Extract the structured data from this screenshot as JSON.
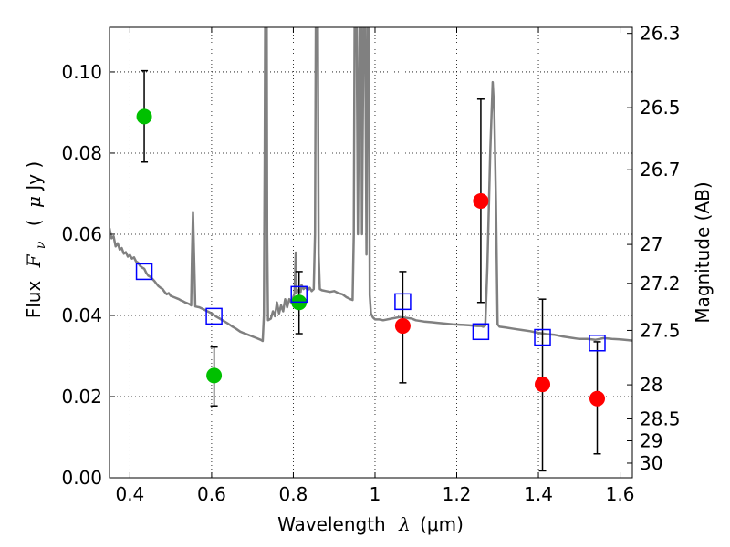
{
  "chart_data": {
    "type": "scatter",
    "xlabel_prefix": "Wavelength",
    "xlabel_symbol": "λ",
    "xlabel_units": "(μm)",
    "ylabel_prefix": "Flux",
    "ylabel_symbol": "F",
    "ylabel_subscript": "ν",
    "ylabel_units_open": "(",
    "ylabel_units_symbol": "μ",
    "ylabel_units_rest": "Jy )",
    "ylabel_right": "Magnitude (AB)",
    "xlim": [
      0.35,
      1.63
    ],
    "ylim": [
      0.0,
      0.111
    ],
    "grid": true,
    "x_ticks": [
      {
        "value": 0.4,
        "label": "0.4"
      },
      {
        "value": 0.6,
        "label": "0.6"
      },
      {
        "value": 0.8,
        "label": "0.8"
      },
      {
        "value": 1.0,
        "label": "1"
      },
      {
        "value": 1.2,
        "label": "1.2"
      },
      {
        "value": 1.4,
        "label": "1.4"
      },
      {
        "value": 1.6,
        "label": "1.6"
      }
    ],
    "y_ticks": [
      {
        "value": 0.0,
        "label": "0.00"
      },
      {
        "value": 0.02,
        "label": "0.02"
      },
      {
        "value": 0.04,
        "label": "0.04"
      },
      {
        "value": 0.06,
        "label": "0.06"
      },
      {
        "value": 0.08,
        "label": "0.08"
      },
      {
        "value": 0.1,
        "label": "0.10"
      }
    ],
    "right_ticks": [
      {
        "label": "26.3",
        "flux": 0.1095
      },
      {
        "label": "26.5",
        "flux": 0.0912
      },
      {
        "label": "26.7",
        "flux": 0.0759
      },
      {
        "label": "27",
        "flux": 0.0575
      },
      {
        "label": "27.2",
        "flux": 0.0479
      },
      {
        "label": "27.5",
        "flux": 0.0363
      },
      {
        "label": "28",
        "flux": 0.0229
      },
      {
        "label": "28.5",
        "flux": 0.0145
      },
      {
        "label": "29",
        "flux": 0.0091
      },
      {
        "label": "30",
        "flux": 0.0036
      }
    ],
    "series": [
      {
        "marker": "circle",
        "color": "#00c000",
        "points": [
          {
            "x": 0.435,
            "y": 0.089,
            "lo": 0.0778,
            "hi": 0.1003
          },
          {
            "x": 0.606,
            "y": 0.0252,
            "lo": 0.0177,
            "hi": 0.0322
          },
          {
            "x": 0.814,
            "y": 0.0432,
            "lo": 0.0355,
            "hi": 0.0508
          }
        ]
      },
      {
        "marker": "circle",
        "color": "#ff0000",
        "points": [
          {
            "x": 1.068,
            "y": 0.0374,
            "lo": 0.0234,
            "hi": 0.0508
          },
          {
            "x": 1.259,
            "y": 0.0682,
            "lo": 0.0432,
            "hi": 0.0933
          },
          {
            "x": 1.41,
            "y": 0.023,
            "lo": 0.0017,
            "hi": 0.044
          },
          {
            "x": 1.544,
            "y": 0.0195,
            "lo": 0.0059,
            "hi": 0.0335
          }
        ]
      },
      {
        "marker": "open-square",
        "color": "#0000ff",
        "points": [
          {
            "x": 0.435,
            "y": 0.0508
          },
          {
            "x": 0.606,
            "y": 0.0398
          },
          {
            "x": 0.814,
            "y": 0.0452
          },
          {
            "x": 1.068,
            "y": 0.0434
          },
          {
            "x": 1.259,
            "y": 0.036
          },
          {
            "x": 1.41,
            "y": 0.0346
          },
          {
            "x": 1.544,
            "y": 0.0332
          }
        ]
      }
    ],
    "sed_model": {
      "color": "#808080",
      "points": [
        [
          0.35,
          0.0615
        ],
        [
          0.355,
          0.059
        ],
        [
          0.36,
          0.0595
        ],
        [
          0.365,
          0.057
        ],
        [
          0.37,
          0.0578
        ],
        [
          0.375,
          0.0562
        ],
        [
          0.38,
          0.0566
        ],
        [
          0.385,
          0.0552
        ],
        [
          0.39,
          0.0556
        ],
        [
          0.395,
          0.0545
        ],
        [
          0.4,
          0.0549
        ],
        [
          0.405,
          0.054
        ],
        [
          0.41,
          0.0543
        ],
        [
          0.415,
          0.0533
        ],
        [
          0.42,
          0.053
        ],
        [
          0.425,
          0.0522
        ],
        [
          0.43,
          0.0518
        ],
        [
          0.435,
          0.0515
        ],
        [
          0.44,
          0.0505
        ],
        [
          0.445,
          0.0498
        ],
        [
          0.45,
          0.0495
        ],
        [
          0.455,
          0.049
        ],
        [
          0.46,
          0.0485
        ],
        [
          0.465,
          0.0478
        ],
        [
          0.47,
          0.0472
        ],
        [
          0.475,
          0.0468
        ],
        [
          0.48,
          0.0465
        ],
        [
          0.485,
          0.0458
        ],
        [
          0.49,
          0.0452
        ],
        [
          0.495,
          0.0455
        ],
        [
          0.5,
          0.0448
        ],
        [
          0.505,
          0.0446
        ],
        [
          0.51,
          0.0444
        ],
        [
          0.515,
          0.0442
        ],
        [
          0.52,
          0.044
        ],
        [
          0.525,
          0.0437
        ],
        [
          0.53,
          0.0435
        ],
        [
          0.535,
          0.0432
        ],
        [
          0.54,
          0.043
        ],
        [
          0.545,
          0.0428
        ],
        [
          0.55,
          0.0425
        ],
        [
          0.552,
          0.0545
        ],
        [
          0.5545,
          0.0655
        ],
        [
          0.557,
          0.0545
        ],
        [
          0.56,
          0.0422
        ],
        [
          0.57,
          0.042
        ],
        [
          0.58,
          0.0415
        ],
        [
          0.59,
          0.041
        ],
        [
          0.6,
          0.0405
        ],
        [
          0.61,
          0.0398
        ],
        [
          0.62,
          0.0392
        ],
        [
          0.63,
          0.0386
        ],
        [
          0.64,
          0.038
        ],
        [
          0.65,
          0.0373
        ],
        [
          0.66,
          0.0367
        ],
        [
          0.67,
          0.036
        ],
        [
          0.68,
          0.0356
        ],
        [
          0.69,
          0.0352
        ],
        [
          0.7,
          0.0348
        ],
        [
          0.71,
          0.0344
        ],
        [
          0.72,
          0.034
        ],
        [
          0.725,
          0.0337
        ],
        [
          0.728,
          0.04
        ],
        [
          0.73,
          0.08
        ],
        [
          0.731,
          0.112
        ],
        [
          0.735,
          0.112
        ],
        [
          0.736,
          0.06
        ],
        [
          0.738,
          0.0388
        ],
        [
          0.745,
          0.0392
        ],
        [
          0.75,
          0.041
        ],
        [
          0.755,
          0.0398
        ],
        [
          0.76,
          0.0432
        ],
        [
          0.765,
          0.0405
        ],
        [
          0.77,
          0.0425
        ],
        [
          0.775,
          0.041
        ],
        [
          0.78,
          0.044
        ],
        [
          0.785,
          0.042
        ],
        [
          0.79,
          0.044
        ],
        [
          0.795,
          0.0432
        ],
        [
          0.8,
          0.0445
        ],
        [
          0.803,
          0.0455
        ],
        [
          0.806,
          0.0555
        ],
        [
          0.808,
          0.0455
        ],
        [
          0.812,
          0.0462
        ],
        [
          0.818,
          0.0458
        ],
        [
          0.82,
          0.0475
        ],
        [
          0.825,
          0.0465
        ],
        [
          0.83,
          0.047
        ],
        [
          0.835,
          0.0462
        ],
        [
          0.84,
          0.0468
        ],
        [
          0.845,
          0.046
        ],
        [
          0.85,
          0.0465
        ],
        [
          0.853,
          0.06
        ],
        [
          0.855,
          0.112
        ],
        [
          0.86,
          0.112
        ],
        [
          0.862,
          0.055
        ],
        [
          0.865,
          0.0465
        ],
        [
          0.87,
          0.0462
        ],
        [
          0.88,
          0.046
        ],
        [
          0.89,
          0.0458
        ],
        [
          0.9,
          0.046
        ],
        [
          0.91,
          0.0455
        ],
        [
          0.92,
          0.0452
        ],
        [
          0.93,
          0.0445
        ],
        [
          0.94,
          0.044
        ],
        [
          0.945,
          0.0438
        ],
        [
          0.948,
          0.06
        ],
        [
          0.95,
          0.112
        ],
        [
          0.955,
          0.112
        ],
        [
          0.958,
          0.06
        ],
        [
          0.962,
          0.112
        ],
        [
          0.966,
          0.112
        ],
        [
          0.968,
          0.06
        ],
        [
          0.972,
          0.112
        ],
        [
          0.976,
          0.112
        ],
        [
          0.979,
          0.055
        ],
        [
          0.982,
          0.112
        ],
        [
          0.985,
          0.112
        ],
        [
          0.987,
          0.045
        ],
        [
          0.99,
          0.0405
        ],
        [
          0.995,
          0.0395
        ],
        [
          1.0,
          0.039
        ],
        [
          1.01,
          0.039
        ],
        [
          1.02,
          0.0388
        ],
        [
          1.04,
          0.0392
        ],
        [
          1.06,
          0.0396
        ],
        [
          1.07,
          0.0395
        ],
        [
          1.09,
          0.0392
        ],
        [
          1.1,
          0.0388
        ],
        [
          1.12,
          0.0385
        ],
        [
          1.14,
          0.0383
        ],
        [
          1.15,
          0.0382
        ],
        [
          1.17,
          0.038
        ],
        [
          1.19,
          0.0378
        ],
        [
          1.21,
          0.0377
        ],
        [
          1.23,
          0.0376
        ],
        [
          1.25,
          0.0374
        ],
        [
          1.255,
          0.0374
        ],
        [
          1.26,
          0.0374
        ],
        [
          1.265,
          0.0372
        ],
        [
          1.27,
          0.0375
        ],
        [
          1.275,
          0.052
        ],
        [
          1.282,
          0.08
        ],
        [
          1.288,
          0.0975
        ],
        [
          1.292,
          0.09
        ],
        [
          1.296,
          0.068
        ],
        [
          1.3,
          0.0378
        ],
        [
          1.305,
          0.0372
        ],
        [
          1.32,
          0.037
        ],
        [
          1.34,
          0.0367
        ],
        [
          1.36,
          0.0364
        ],
        [
          1.38,
          0.0361
        ],
        [
          1.4,
          0.0357
        ],
        [
          1.42,
          0.0354
        ],
        [
          1.44,
          0.0352
        ],
        [
          1.46,
          0.0348
        ],
        [
          1.48,
          0.0345
        ],
        [
          1.5,
          0.0342
        ],
        [
          1.52,
          0.0342
        ],
        [
          1.54,
          0.034
        ],
        [
          1.56,
          0.0344
        ],
        [
          1.58,
          0.0342
        ],
        [
          1.6,
          0.0341
        ],
        [
          1.62,
          0.0339
        ],
        [
          1.63,
          0.0338
        ]
      ]
    }
  }
}
